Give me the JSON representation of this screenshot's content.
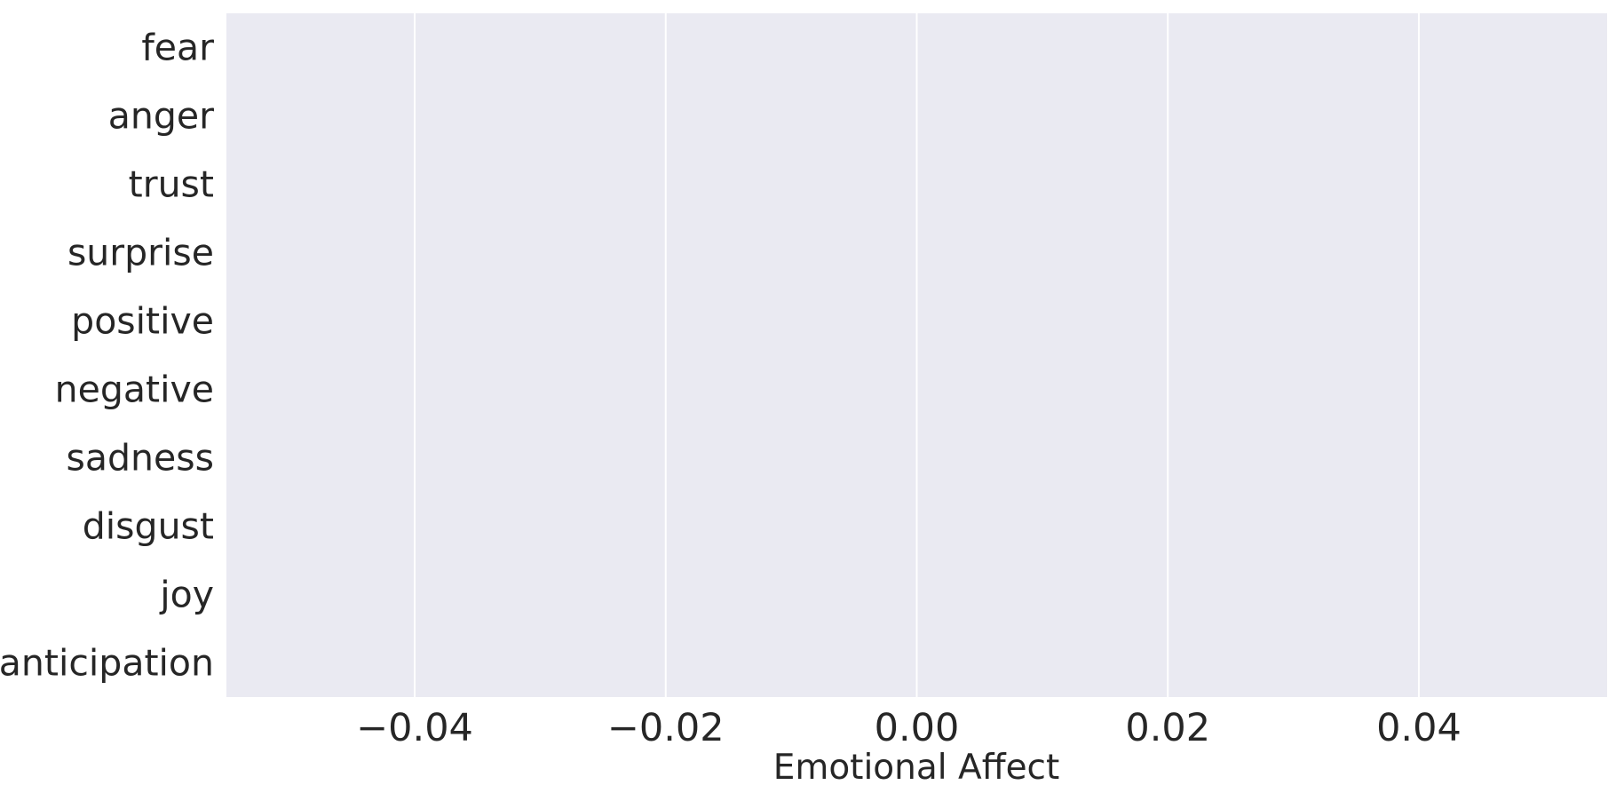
{
  "chart_data": {
    "type": "bar",
    "orientation": "horizontal",
    "categories": [
      "fear",
      "anger",
      "trust",
      "surprise",
      "positive",
      "negative",
      "sadness",
      "disgust",
      "joy",
      "anticipation"
    ],
    "values": [
      0,
      0,
      0,
      0,
      0,
      0,
      0,
      0,
      0,
      0
    ],
    "xlabel": "Emotional Affect",
    "ylabel": "",
    "xlim": [
      -0.055,
      0.055
    ],
    "xticks": [
      -0.04,
      -0.02,
      0.0,
      0.02,
      0.04
    ],
    "xtick_labels": [
      "−0.04",
      "−0.02",
      "0.00",
      "0.02",
      "0.04"
    ],
    "grid": true,
    "colors": {
      "plot_background": "#eaeaf2",
      "grid": "#ffffff",
      "text": "#262626",
      "bar": "#4c72b0"
    }
  }
}
